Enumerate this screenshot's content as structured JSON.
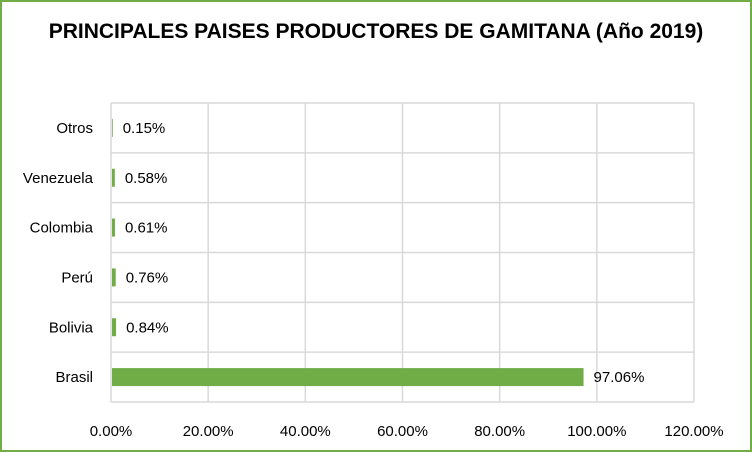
{
  "chart_data": {
    "type": "bar",
    "orientation": "horizontal",
    "title": "PRINCIPALES PAISES PRODUCTORES DE GAMITANA (Año 2019)",
    "categories": [
      "Otros",
      "Venezuela",
      "Colombia",
      "Perú",
      "Bolivia",
      "Brasil"
    ],
    "values": [
      0.15,
      0.58,
      0.61,
      0.76,
      0.84,
      97.06
    ],
    "data_labels": [
      "0.15%",
      "0.58%",
      "0.61%",
      "0.76%",
      "0.84%",
      "97.06%"
    ],
    "xlim": [
      0,
      120
    ],
    "xticks": [
      0,
      20,
      40,
      60,
      80,
      100,
      120
    ],
    "xtick_labels": [
      "0.00%",
      "20.00%",
      "40.00%",
      "60.00%",
      "80.00%",
      "100.00%",
      "120.00%"
    ],
    "grid": true,
    "legend": "none",
    "colors": {
      "bar": "#70ad47",
      "grid": "#d9d9d9",
      "border": "#70ad47"
    }
  }
}
